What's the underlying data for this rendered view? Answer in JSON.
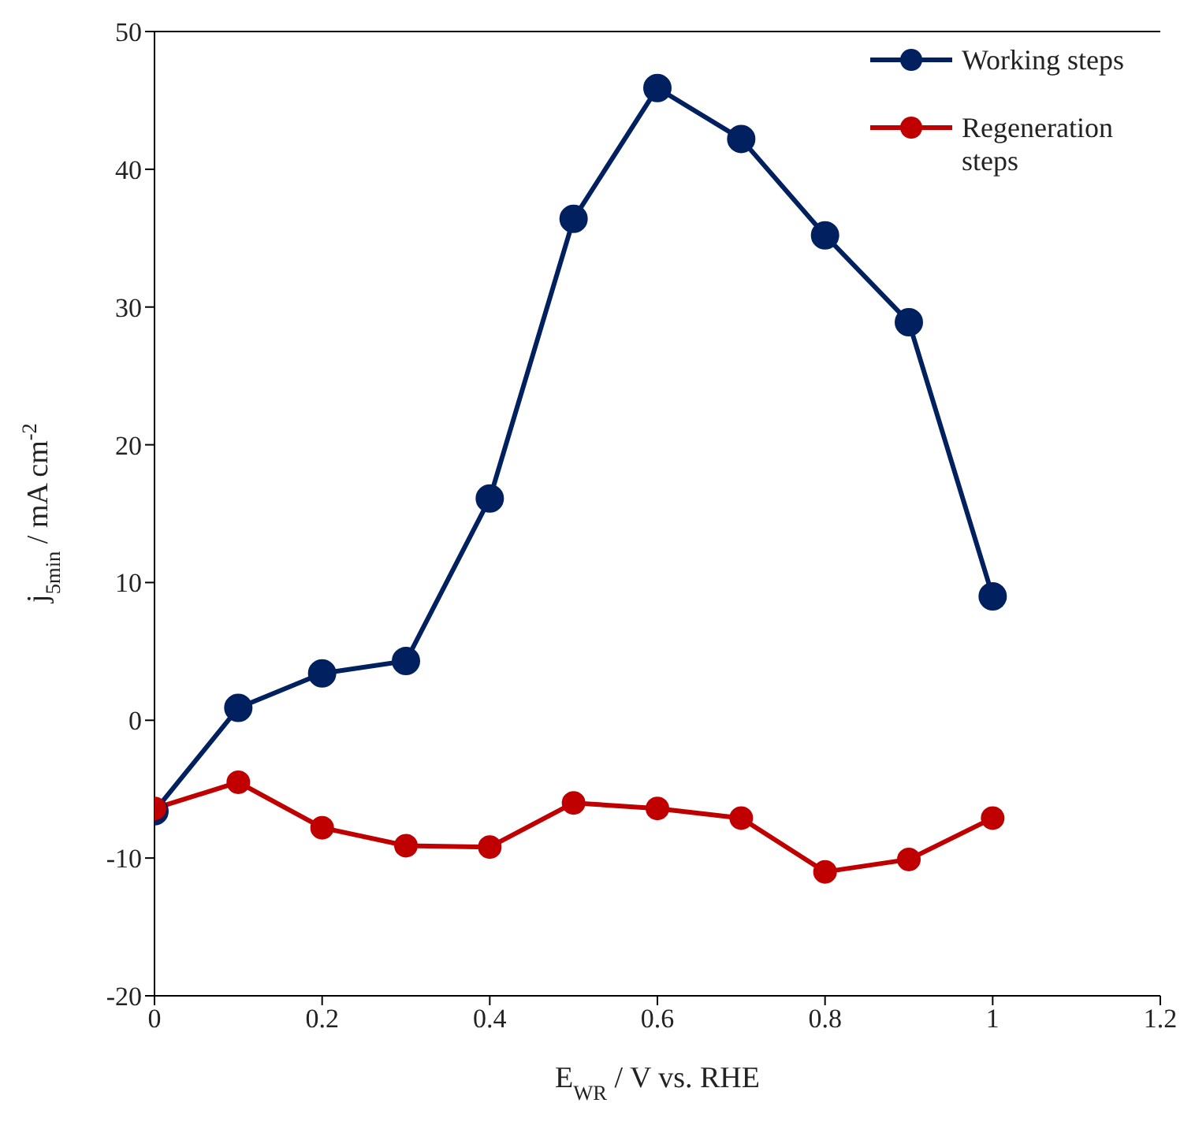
{
  "chart_data": {
    "type": "line",
    "xlabel": "E$_{WR}$ / V vs. RHE",
    "ylabel": "j$_{5min}$ / mA cm$^{-2}$",
    "x": [
      0,
      0.1,
      0.2,
      0.3,
      0.4,
      0.5,
      0.6,
      0.7,
      0.8,
      0.9,
      1.0
    ],
    "series": [
      {
        "name": "Working steps",
        "color": "#002060",
        "values": [
          -6.6,
          0.9,
          3.4,
          4.3,
          16.1,
          36.4,
          45.9,
          42.2,
          35.2,
          28.9,
          9.0
        ]
      },
      {
        "name": "Regeneration steps",
        "color": "#c00000",
        "values": [
          -6.4,
          -4.5,
          -7.8,
          -9.1,
          -9.2,
          -6.0,
          -6.4,
          -7.1,
          -11.0,
          -10.1,
          -7.1
        ]
      }
    ],
    "xlim": [
      0,
      1.2
    ],
    "xticks": [
      0,
      0.2,
      0.4,
      0.6,
      0.8,
      1,
      1.2
    ],
    "ylim": [
      -20,
      50
    ],
    "yticks": [
      -20,
      -10,
      0,
      10,
      20,
      30,
      40,
      50
    ],
    "grid": false,
    "legend": "top right",
    "marker": "circle",
    "line_style": "solid"
  }
}
